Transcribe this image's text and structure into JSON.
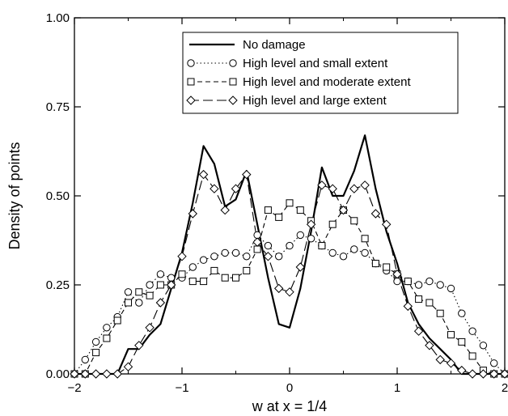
{
  "chart_data": {
    "type": "line",
    "title": "",
    "xlabel": "w at x = 1/4",
    "ylabel": "Density of points",
    "xlim": [
      -2,
      2
    ],
    "ylim": [
      0,
      1
    ],
    "x_ticks": [
      -2,
      -1,
      0,
      1,
      2
    ],
    "x_tick_labels": [
      "−2",
      "−1",
      "0",
      "1",
      "2"
    ],
    "y_ticks": [
      0,
      0.25,
      0.5,
      0.75,
      1.0
    ],
    "y_tick_labels": [
      "0.00",
      "0.25",
      "0.50",
      "0.75",
      "1.00"
    ],
    "grid": false,
    "legend_position": "top-right",
    "series": [
      {
        "name": "No damage",
        "line_style": "solid",
        "marker": "none",
        "x": [
          -2.0,
          -1.9,
          -1.8,
          -1.7,
          -1.6,
          -1.5,
          -1.4,
          -1.3,
          -1.2,
          -1.1,
          -1.0,
          -0.9,
          -0.8,
          -0.7,
          -0.6,
          -0.5,
          -0.4,
          -0.3,
          -0.2,
          -0.1,
          0.0,
          0.1,
          0.2,
          0.3,
          0.4,
          0.5,
          0.6,
          0.7,
          0.8,
          0.9,
          1.0,
          1.1,
          1.2,
          1.3,
          1.4,
          1.5,
          1.6,
          1.7,
          1.8,
          1.9,
          2.0
        ],
        "y": [
          0.0,
          0.0,
          0.0,
          0.0,
          0.0,
          0.07,
          0.07,
          0.11,
          0.14,
          0.24,
          0.34,
          0.48,
          0.64,
          0.59,
          0.47,
          0.49,
          0.57,
          0.42,
          0.27,
          0.14,
          0.13,
          0.24,
          0.4,
          0.58,
          0.5,
          0.5,
          0.57,
          0.67,
          0.52,
          0.4,
          0.31,
          0.2,
          0.14,
          0.1,
          0.07,
          0.04,
          0.0,
          0.0,
          0.0,
          0.0,
          0.0
        ]
      },
      {
        "name": "High level and small extent",
        "line_style": "dotted",
        "marker": "circle",
        "x": [
          -2.0,
          -1.9,
          -1.8,
          -1.7,
          -1.6,
          -1.5,
          -1.4,
          -1.3,
          -1.2,
          -1.1,
          -1.0,
          -0.9,
          -0.8,
          -0.7,
          -0.6,
          -0.5,
          -0.4,
          -0.3,
          -0.2,
          -0.1,
          0.0,
          0.1,
          0.2,
          0.3,
          0.4,
          0.5,
          0.6,
          0.7,
          0.8,
          0.9,
          1.0,
          1.1,
          1.2,
          1.3,
          1.4,
          1.5,
          1.6,
          1.7,
          1.8,
          1.9,
          2.0
        ],
        "y": [
          0.0,
          0.04,
          0.09,
          0.13,
          0.16,
          0.23,
          0.2,
          0.25,
          0.28,
          0.27,
          0.27,
          0.3,
          0.32,
          0.33,
          0.34,
          0.34,
          0.33,
          0.39,
          0.36,
          0.33,
          0.36,
          0.39,
          0.38,
          0.36,
          0.34,
          0.33,
          0.35,
          0.34,
          0.31,
          0.29,
          0.26,
          0.26,
          0.25,
          0.26,
          0.25,
          0.24,
          0.17,
          0.12,
          0.08,
          0.03,
          0.0
        ]
      },
      {
        "name": "High level and moderate extent",
        "line_style": "dashed",
        "marker": "square",
        "x": [
          -2.0,
          -1.9,
          -1.8,
          -1.7,
          -1.6,
          -1.5,
          -1.4,
          -1.3,
          -1.2,
          -1.1,
          -1.0,
          -0.9,
          -0.8,
          -0.7,
          -0.6,
          -0.5,
          -0.4,
          -0.3,
          -0.2,
          -0.1,
          0.0,
          0.1,
          0.2,
          0.3,
          0.4,
          0.5,
          0.6,
          0.7,
          0.8,
          0.9,
          1.0,
          1.1,
          1.2,
          1.3,
          1.4,
          1.5,
          1.6,
          1.7,
          1.8,
          1.9,
          2.0
        ],
        "y": [
          0.0,
          0.0,
          0.06,
          0.1,
          0.15,
          0.2,
          0.23,
          0.22,
          0.25,
          0.25,
          0.28,
          0.26,
          0.26,
          0.29,
          0.27,
          0.27,
          0.29,
          0.35,
          0.46,
          0.44,
          0.48,
          0.46,
          0.43,
          0.36,
          0.42,
          0.46,
          0.43,
          0.38,
          0.31,
          0.3,
          0.28,
          0.26,
          0.21,
          0.2,
          0.17,
          0.11,
          0.09,
          0.05,
          0.01,
          0.0,
          0.0
        ]
      },
      {
        "name": "High level and large extent",
        "line_style": "long-dash",
        "marker": "diamond",
        "x": [
          -2.0,
          -1.9,
          -1.8,
          -1.7,
          -1.6,
          -1.5,
          -1.4,
          -1.3,
          -1.2,
          -1.1,
          -1.0,
          -0.9,
          -0.8,
          -0.7,
          -0.6,
          -0.5,
          -0.4,
          -0.3,
          -0.2,
          -0.1,
          0.0,
          0.1,
          0.2,
          0.3,
          0.4,
          0.5,
          0.6,
          0.7,
          0.8,
          0.9,
          1.0,
          1.1,
          1.2,
          1.3,
          1.4,
          1.5,
          1.6,
          1.7,
          1.8,
          1.9,
          2.0
        ],
        "y": [
          0.0,
          0.0,
          0.0,
          0.0,
          0.0,
          0.02,
          0.08,
          0.13,
          0.2,
          0.25,
          0.33,
          0.45,
          0.56,
          0.52,
          0.46,
          0.52,
          0.56,
          0.37,
          0.33,
          0.24,
          0.23,
          0.3,
          0.42,
          0.53,
          0.52,
          0.46,
          0.52,
          0.53,
          0.45,
          0.42,
          0.28,
          0.19,
          0.12,
          0.08,
          0.04,
          0.03,
          0.01,
          0.0,
          0.0,
          0.0,
          0.0
        ]
      }
    ]
  }
}
